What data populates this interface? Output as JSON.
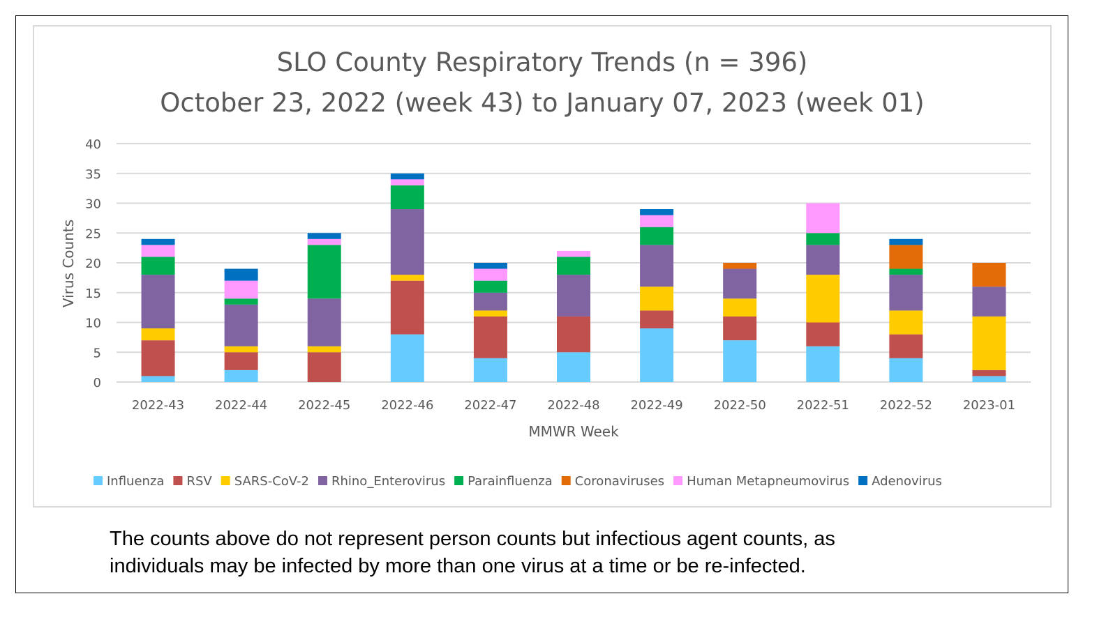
{
  "chart_data": {
    "type": "bar",
    "stacked": true,
    "title": "SLO County Respiratory Trends (n = 396)",
    "subtitle": "October 23, 2022 (week 43) to January 07, 2023 (week 01)",
    "xlabel": "MMWR Week",
    "ylabel": "Virus Counts",
    "ylim": [
      0,
      40
    ],
    "yticks": [
      0,
      5,
      10,
      15,
      20,
      25,
      30,
      35,
      40
    ],
    "grid": true,
    "legend_position": "bottom",
    "categories": [
      "2022-43",
      "2022-44",
      "2022-45",
      "2022-46",
      "2022-47",
      "2022-48",
      "2022-49",
      "2022-50",
      "2022-51",
      "2022-52",
      "2023-01"
    ],
    "series": [
      {
        "name": "Influenza",
        "color": "#66CCFF",
        "values": [
          1,
          2,
          0,
          8,
          4,
          5,
          9,
          7,
          6,
          4,
          1
        ]
      },
      {
        "name": "RSV",
        "color": "#C0504D",
        "values": [
          6,
          3,
          5,
          9,
          7,
          6,
          3,
          4,
          4,
          4,
          1
        ]
      },
      {
        "name": "SARS-CoV-2",
        "color": "#FFCC00",
        "values": [
          2,
          1,
          1,
          1,
          1,
          0,
          4,
          3,
          8,
          4,
          9
        ]
      },
      {
        "name": "Rhino_Enterovirus",
        "color": "#8064A2",
        "values": [
          9,
          7,
          8,
          11,
          3,
          7,
          7,
          5,
          5,
          6,
          5
        ]
      },
      {
        "name": "Parainfluenza",
        "color": "#00B050",
        "values": [
          3,
          1,
          9,
          4,
          2,
          3,
          3,
          0,
          2,
          1,
          0
        ]
      },
      {
        "name": "Coronaviruses",
        "color": "#E36C09",
        "values": [
          0,
          0,
          0,
          0,
          0,
          0,
          0,
          1,
          0,
          4,
          4
        ]
      },
      {
        "name": "Human Metapneumovirus",
        "color": "#FF99FF",
        "values": [
          2,
          3,
          1,
          1,
          2,
          1,
          2,
          0,
          5,
          0,
          0
        ]
      },
      {
        "name": "Adenovirus",
        "color": "#0070C0",
        "values": [
          1,
          2,
          1,
          1,
          1,
          0,
          1,
          0,
          0,
          1,
          0
        ]
      }
    ]
  },
  "footnote": {
    "line1": "The counts above do not represent person counts but infectious agent counts, as",
    "line2": "individuals may be infected by more than one virus at a time or be re-infected."
  }
}
